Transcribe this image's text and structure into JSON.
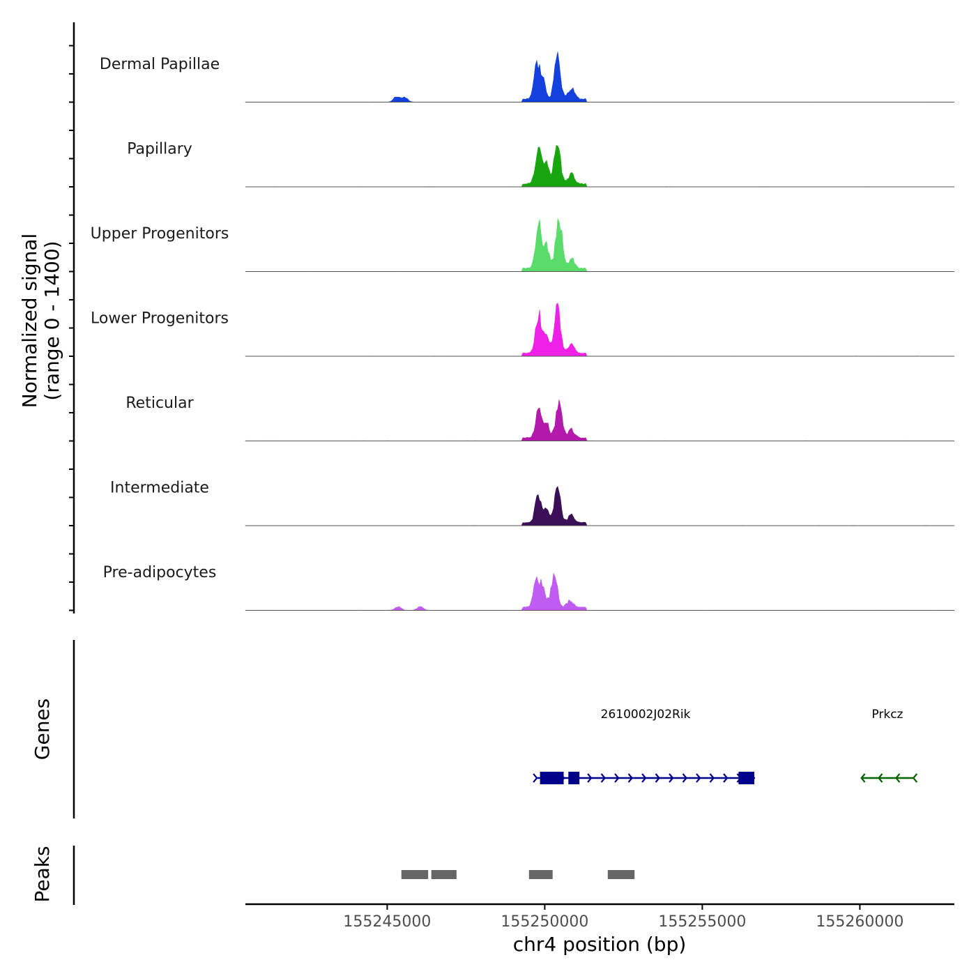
{
  "chart_data": {
    "type": "area",
    "title": "",
    "ylabel": "Normalized signal",
    "ylabel_range": "(range 0 - 1400)",
    "y_range": [
      0,
      1400
    ],
    "xlabel": "chr4 position (bp)",
    "x_range": [
      155240500,
      155263000
    ],
    "x_ticks": [
      155245000,
      155250000,
      155255000,
      155260000
    ],
    "x_tick_labels": [
      "155245000",
      "155250000",
      "155255000",
      "155260000"
    ],
    "tracks": [
      {
        "name": "Dermal Papillae",
        "color": "#1440DD",
        "peaks": [
          [
            155245300,
            0.13
          ],
          [
            155245550,
            0.11
          ],
          [
            155249750,
            0.76
          ],
          [
            155250400,
            0.92
          ],
          [
            155250850,
            0.26
          ]
        ],
        "extra": [
          [
            155249950,
            0.36
          ]
        ]
      },
      {
        "name": "Papillary",
        "color": "#19A50F",
        "peaks": [
          [
            155249800,
            0.72
          ],
          [
            155250400,
            0.95
          ],
          [
            155250850,
            0.22
          ]
        ],
        "extra": [
          [
            155250050,
            0.42
          ]
        ]
      },
      {
        "name": "Upper Progenitors",
        "color": "#5ADC6A",
        "peaks": [
          [
            155249800,
            0.97
          ],
          [
            155250450,
            1.18
          ],
          [
            155250850,
            0.22
          ]
        ],
        "extra": [
          [
            155250050,
            0.52
          ]
        ]
      },
      {
        "name": "Lower Progenitors",
        "color": "#F021E6",
        "peaks": [
          [
            155249800,
            0.86
          ],
          [
            155250400,
            0.98
          ],
          [
            155250850,
            0.25
          ]
        ],
        "extra": [
          [
            155250050,
            0.38
          ]
        ]
      },
      {
        "name": "Reticular",
        "color": "#B31AAB",
        "peaks": [
          [
            155249800,
            0.58
          ],
          [
            155250450,
            0.78
          ],
          [
            155250850,
            0.18
          ]
        ],
        "extra": [
          [
            155250050,
            0.32
          ]
        ]
      },
      {
        "name": "Intermediate",
        "color": "#3B0F55",
        "peaks": [
          [
            155249800,
            0.64
          ],
          [
            155250400,
            0.8
          ],
          [
            155250850,
            0.18
          ]
        ],
        "extra": [
          [
            155250050,
            0.32
          ]
        ]
      },
      {
        "name": "Pre-adipocytes",
        "color": "#C05CF2",
        "peaks": [
          [
            155245350,
            0.08
          ],
          [
            155246050,
            0.08
          ],
          [
            155249750,
            0.65
          ],
          [
            155250300,
            0.78
          ],
          [
            155250800,
            0.15
          ]
        ],
        "extra": [
          [
            155249950,
            0.38
          ]
        ]
      }
    ],
    "genes": [
      {
        "name": "2610002J02Rik",
        "color": "#00008B",
        "strand": "+",
        "start": 155249750,
        "end": 155256650,
        "exons": [
          [
            155249850,
            155250600
          ],
          [
            155250750,
            155251100
          ],
          [
            155256150,
            155256650
          ]
        ]
      },
      {
        "name": "Prkcz",
        "color": "#006400",
        "strand": "-",
        "start": 155260050,
        "end": 155261700,
        "exons": []
      }
    ],
    "peak_regions": [
      [
        155245450,
        155246300
      ],
      [
        155246400,
        155247200
      ],
      [
        155249500,
        155250250
      ],
      [
        155252000,
        155252850
      ]
    ],
    "panel_titles": {
      "genes": "Genes",
      "peaks": "Peaks"
    }
  }
}
